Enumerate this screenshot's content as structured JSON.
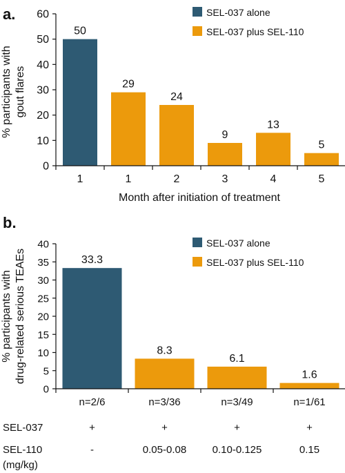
{
  "colors": {
    "alone": "#2e5a73",
    "plus": "#ec9a0c",
    "axis": "#111111"
  },
  "legend": {
    "alone": "SEL-037 alone",
    "plus": "SEL-037  plus SEL-110"
  },
  "chart_data": [
    {
      "panel_label": "a.",
      "type": "bar",
      "categories": [
        "1",
        "1",
        "2",
        "3",
        "4",
        "5"
      ],
      "values": [
        50,
        29,
        24,
        9,
        13,
        5
      ],
      "data_labels": [
        "50",
        "29",
        "24",
        "9",
        "13",
        "5"
      ],
      "series_of_bar": [
        "alone",
        "plus",
        "plus",
        "plus",
        "plus",
        "plus"
      ],
      "series": [
        {
          "name": "SEL-037 alone",
          "values": [
            50,
            null,
            null,
            null,
            null,
            null
          ]
        },
        {
          "name": "SEL-037  plus SEL-110",
          "values": [
            null,
            29,
            24,
            9,
            13,
            5
          ]
        }
      ],
      "xlabel": "Month after initiation of treatment",
      "ylabel_lines": [
        "% participants with",
        "gout flares"
      ],
      "ylim": [
        0,
        60
      ],
      "yticks": [
        0,
        10,
        20,
        30,
        40,
        50,
        60
      ],
      "legend_position": "top-right",
      "grid": false
    },
    {
      "panel_label": "b.",
      "type": "bar",
      "categories": [
        "n=2/6",
        "n=3/36",
        "n=3/49",
        "n=1/61"
      ],
      "values": [
        33.3,
        8.3,
        6.1,
        1.6
      ],
      "data_labels": [
        "33.3",
        "8.3",
        "6.1",
        "1.6"
      ],
      "series_of_bar": [
        "alone",
        "plus",
        "plus",
        "plus"
      ],
      "series": [
        {
          "name": "SEL-037 alone",
          "values": [
            33.3,
            null,
            null,
            null
          ]
        },
        {
          "name": "SEL-037  plus SEL-110",
          "values": [
            null,
            8.3,
            6.1,
            1.6
          ]
        }
      ],
      "ylabel_lines": [
        "% participants with",
        "drug-related serious TEAEs"
      ],
      "ylim": [
        0,
        40
      ],
      "yticks": [
        0,
        5,
        10,
        15,
        20,
        25,
        30,
        35,
        40
      ],
      "legend_position": "top-right",
      "grid": false,
      "dose_table": [
        {
          "label": "SEL-037",
          "values": [
            "+",
            "+",
            "+",
            "+"
          ]
        },
        {
          "label": "SEL-110",
          "sublabel": "(mg/kg)",
          "values": [
            "-",
            "0.05-0.08",
            "0.10-0.125",
            "0.15"
          ]
        }
      ]
    }
  ]
}
